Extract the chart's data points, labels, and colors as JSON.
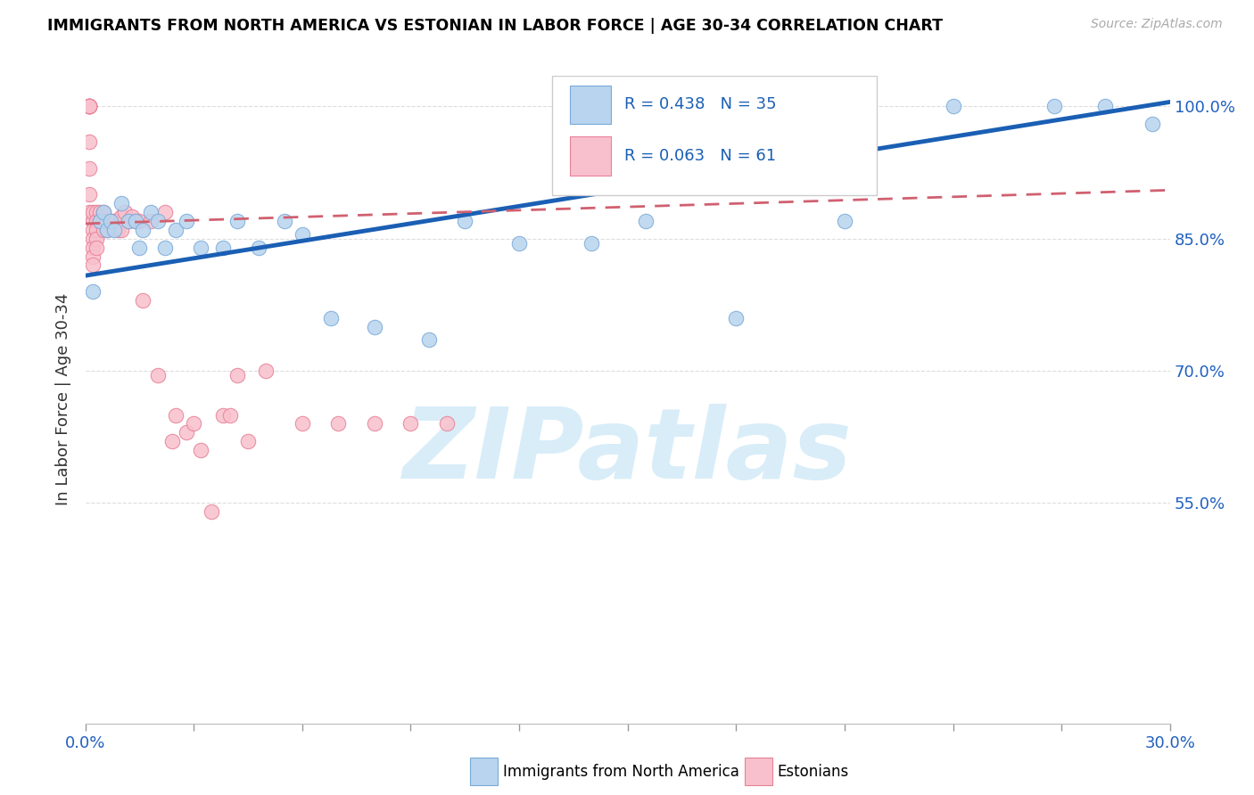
{
  "title": "IMMIGRANTS FROM NORTH AMERICA VS ESTONIAN IN LABOR FORCE | AGE 30-34 CORRELATION CHART",
  "source": "Source: ZipAtlas.com",
  "ylabel": "In Labor Force | Age 30-34",
  "legend_blue_R": 0.438,
  "legend_blue_N": 35,
  "legend_pink_R": 0.063,
  "legend_pink_N": 61,
  "blue_fill": "#b8d4ee",
  "blue_edge": "#7aabda",
  "pink_fill": "#f8c0cc",
  "pink_edge": "#e88098",
  "trend_blue": "#1a5fb4",
  "trend_pink": "#d06070",
  "watermark": "ZIPatlas",
  "watermark_color": "#d8edf8",
  "xmin": 0.0,
  "xmax": 0.3,
  "ymin": 0.3,
  "ymax": 1.035,
  "yticks": [
    1.0,
    0.85,
    0.7,
    0.55
  ],
  "ytick_labels": [
    "100.0%",
    "85.0%",
    "70.0%",
    "55.0%"
  ],
  "blue_x": [
    0.002,
    0.004,
    0.005,
    0.006,
    0.007,
    0.008,
    0.01,
    0.012,
    0.014,
    0.015,
    0.016,
    0.018,
    0.02,
    0.022,
    0.025,
    0.028,
    0.032,
    0.038,
    0.042,
    0.048,
    0.055,
    0.06,
    0.068,
    0.08,
    0.095,
    0.105,
    0.12,
    0.14,
    0.155,
    0.18,
    0.21,
    0.24,
    0.268,
    0.282,
    0.295
  ],
  "blue_y": [
    0.79,
    0.87,
    0.88,
    0.86,
    0.87,
    0.86,
    0.89,
    0.87,
    0.87,
    0.84,
    0.86,
    0.88,
    0.87,
    0.84,
    0.86,
    0.87,
    0.84,
    0.84,
    0.87,
    0.84,
    0.87,
    0.855,
    0.76,
    0.75,
    0.735,
    0.87,
    0.845,
    0.845,
    0.87,
    0.76,
    0.87,
    1.0,
    1.0,
    1.0,
    0.98
  ],
  "pink_x": [
    0.001,
    0.001,
    0.001,
    0.001,
    0.001,
    0.001,
    0.001,
    0.001,
    0.001,
    0.001,
    0.002,
    0.002,
    0.002,
    0.002,
    0.002,
    0.002,
    0.002,
    0.003,
    0.003,
    0.003,
    0.003,
    0.003,
    0.004,
    0.004,
    0.005,
    0.005,
    0.005,
    0.006,
    0.006,
    0.006,
    0.007,
    0.008,
    0.008,
    0.009,
    0.01,
    0.01,
    0.011,
    0.012,
    0.013,
    0.014,
    0.015,
    0.016,
    0.018,
    0.02,
    0.022,
    0.024,
    0.025,
    0.028,
    0.03,
    0.032,
    0.035,
    0.038,
    0.04,
    0.042,
    0.045,
    0.05,
    0.06,
    0.07,
    0.08,
    0.09,
    0.1
  ],
  "pink_y": [
    1.0,
    1.0,
    1.0,
    1.0,
    1.0,
    1.0,
    0.96,
    0.93,
    0.9,
    0.88,
    0.87,
    0.86,
    0.85,
    0.84,
    0.83,
    0.82,
    0.88,
    0.88,
    0.87,
    0.86,
    0.85,
    0.84,
    0.88,
    0.87,
    0.88,
    0.87,
    0.86,
    0.87,
    0.86,
    0.87,
    0.87,
    0.87,
    0.87,
    0.86,
    0.875,
    0.86,
    0.88,
    0.87,
    0.875,
    0.87,
    0.87,
    0.78,
    0.87,
    0.695,
    0.88,
    0.62,
    0.65,
    0.63,
    0.64,
    0.61,
    0.54,
    0.65,
    0.65,
    0.695,
    0.62,
    0.7,
    0.64,
    0.64,
    0.64,
    0.64,
    0.64
  ],
  "trend_blue_x0": 0.0,
  "trend_blue_y0": 0.808,
  "trend_blue_x1": 0.3,
  "trend_blue_y1": 1.005,
  "trend_pink_x0": 0.0,
  "trend_pink_y0": 0.867,
  "trend_pink_x1": 0.3,
  "trend_pink_y1": 0.905
}
